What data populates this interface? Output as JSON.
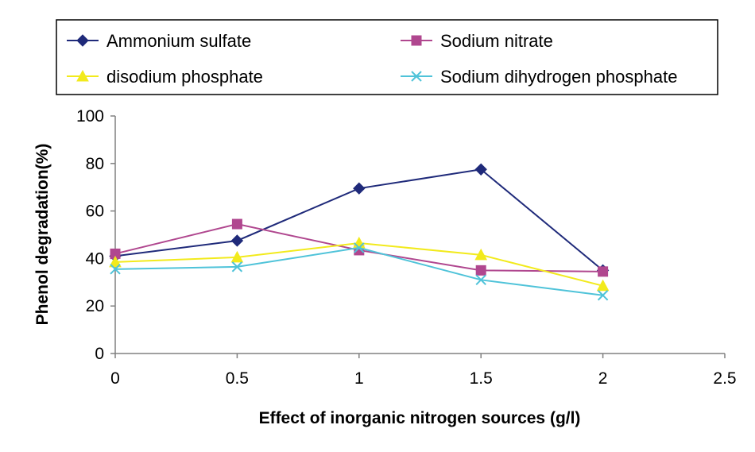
{
  "chart_data": {
    "type": "line",
    "title": "",
    "xlabel": "Effect of inorganic nitrogen sources (g/l)",
    "ylabel": "Phenol degradation(%)",
    "xlim": [
      0,
      2.5
    ],
    "ylim": [
      0,
      100
    ],
    "x_ticks": [
      "0",
      "0.5",
      "1",
      "1.5",
      "2",
      "2.5"
    ],
    "y_ticks": [
      "0",
      "20",
      "40",
      "60",
      "80",
      "100"
    ],
    "grid": false,
    "legend_position": "top",
    "x": [
      0,
      0.5,
      1,
      1.5,
      2
    ],
    "series": [
      {
        "name": "Ammonium sulfate",
        "color": "#1f2a7a",
        "marker": "diamond",
        "values": [
          41,
          47.5,
          69.5,
          77.5,
          35
        ]
      },
      {
        "name": "Sodium nitrate",
        "color": "#b0478f",
        "marker": "square",
        "values": [
          42,
          54.5,
          43.5,
          35,
          34.5
        ]
      },
      {
        "name": "disodium phosphate",
        "color": "#f2ea1c",
        "marker": "triangle",
        "values": [
          38.5,
          40.5,
          46.5,
          41.5,
          28.5
        ]
      },
      {
        "name": "Sodium dihydrogen phosphate",
        "color": "#4fc3d9",
        "marker": "x",
        "values": [
          35.5,
          36.5,
          44.5,
          31,
          24.5
        ]
      }
    ]
  }
}
